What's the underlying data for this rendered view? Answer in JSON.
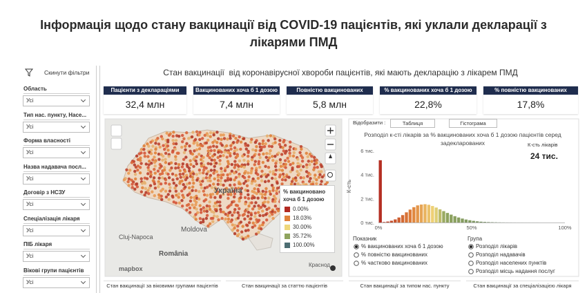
{
  "title": "Інформація щодо стану вакцинації від COVID-19 пацієнтів, які уклали декларації з лікарями ПМД",
  "sidebar": {
    "reset": "Скинути фільтри",
    "filters": [
      {
        "label": "Область",
        "value": "Усі"
      },
      {
        "label": "Тип нас. пункту, Насе...",
        "value": "Усі"
      },
      {
        "label": "Форма власності",
        "value": "Усі"
      },
      {
        "label": "Назва надавача посл...",
        "value": "Усі"
      },
      {
        "label": "Договір з НСЗУ",
        "value": "Усі"
      },
      {
        "label": "Спеціалізація лікаря",
        "value": "Усі"
      },
      {
        "label": "ПІБ лікаря",
        "value": "Усі"
      },
      {
        "label": "Вікові групи пацієнтів",
        "value": "Усі"
      }
    ]
  },
  "dashboard_title": "Стан вакцинації  від коронавірусної хвороби пацієнтів, які мають декларацію з лікарем ПМД",
  "kpis": [
    {
      "label": "Пацієнти з деклараціями",
      "value": "32,4 млн"
    },
    {
      "label": "Вакцинованих хоча б 1 дозою",
      "value": "7,4 млн"
    },
    {
      "label": "Повністю вакцинованих",
      "value": "5,8 млн"
    },
    {
      "label": "% вакцинованих хоча б 1 дозою",
      "value": "22,8%"
    },
    {
      "label": "% повністю вакцинованих",
      "value": "17,8%"
    }
  ],
  "map": {
    "places": [
      "Україна",
      "Moldova",
      "Cluj-Napoca",
      "România",
      "Краснод"
    ],
    "attribution": "mapbox",
    "legend_title": "% вакциновано хоча б 1 дозою",
    "legend": [
      {
        "value": 0,
        "label": "0.00%",
        "color": "#b22a22"
      },
      {
        "value": 18.03,
        "label": "18.03%",
        "color": "#e0813a"
      },
      {
        "value": 30,
        "label": "30.00%",
        "color": "#efd77a"
      },
      {
        "value": 35.72,
        "label": "35.72%",
        "color": "#8fa45e"
      },
      {
        "value": 100,
        "label": "100.00%",
        "color": "#4d6e73"
      }
    ]
  },
  "view": {
    "label": "Відобразити :",
    "buttons": [
      "Таблиця",
      "Гістограма"
    ]
  },
  "chart_data": {
    "type": "histogram",
    "title": "Розподіл к-сті лікарів за % вакцинованих хоча б 1 дозою пацієнтів серед задекларованих",
    "y_label": "К-сть",
    "card": {
      "label": "К-сть лікарів",
      "value": "24 тис."
    },
    "bins": [
      0,
      2,
      4,
      6,
      8,
      10,
      12,
      14,
      16,
      18,
      20,
      22,
      24,
      26,
      28,
      30,
      32,
      34,
      36,
      38,
      40,
      42,
      44,
      46,
      48,
      50,
      52,
      54,
      56,
      58,
      60,
      62,
      64,
      66,
      68,
      70,
      72,
      74,
      76,
      78,
      80,
      82,
      84,
      86,
      88,
      90,
      92,
      94,
      96,
      98,
      100
    ],
    "values": [
      5200,
      40,
      80,
      150,
      260,
      420,
      620,
      850,
      1080,
      1280,
      1430,
      1500,
      1530,
      1480,
      1380,
      1250,
      1100,
      950,
      800,
      660,
      530,
      420,
      330,
      250,
      190,
      140,
      100,
      70,
      50,
      35,
      25,
      18,
      12,
      8,
      5,
      4,
      3,
      2,
      2,
      1,
      1,
      1,
      1,
      0,
      0,
      0,
      0,
      0,
      0,
      0
    ],
    "xlim": [
      0,
      100
    ],
    "ylim": [
      0,
      6000
    ],
    "xticks": [
      {
        "value": 0,
        "label": "0%"
      },
      {
        "value": 50,
        "label": "50%"
      },
      {
        "value": 100,
        "label": "100%"
      }
    ],
    "yticks": [
      {
        "value": 0,
        "label": "0 тис."
      },
      {
        "value": 2000,
        "label": "2 тис."
      },
      {
        "value": 4000,
        "label": "4 тис."
      },
      {
        "value": 6000,
        "label": "6 тис."
      }
    ],
    "grid": false
  },
  "options": {
    "measure_title": "Показник",
    "measures": [
      "% вакцинованих хоча б 1 дозою",
      "% повністю вакцинованих",
      "% частково вакцинованих"
    ],
    "measure_selected": 0,
    "group_title": "Група",
    "groups": [
      "Розподіл лікарів",
      "Розподіл надавачів",
      "Розподіл населених пунктів",
      "Розподіл місць надання послуг"
    ],
    "group_selected": 0
  },
  "tabs": [
    "Стан вакцинації за віковими групами пацієнтів",
    "Стан вакцинації за статтю пацієнтів",
    "Стан вакцинації за типом нас. пункту",
    "Стан вакцинації за спеціалізацією лікаря"
  ]
}
